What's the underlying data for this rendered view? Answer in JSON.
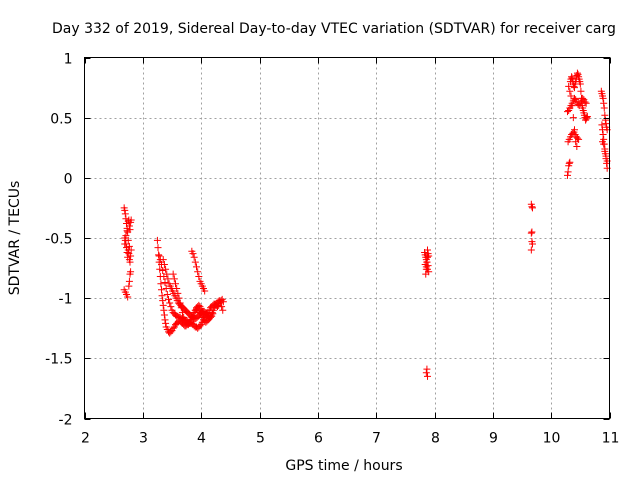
{
  "chart_data": {
    "type": "scatter",
    "title": "Day 332 of 2019, Sidereal Day-to-day VTEC variation (SDTVAR) for receiver carg",
    "xlabel": "GPS time / hours",
    "ylabel": "SDTVAR / TECUs",
    "xlim": [
      2,
      11
    ],
    "ylim": [
      -2,
      1
    ],
    "xticks": [
      2,
      3,
      4,
      5,
      6,
      7,
      8,
      9,
      10,
      11
    ],
    "yticks": [
      -2,
      -1.5,
      -1,
      -0.5,
      0,
      0.5,
      1
    ],
    "xtick_labels": [
      "2",
      "3",
      "4",
      "5",
      "6",
      "7",
      "8",
      "9",
      "10",
      "11"
    ],
    "ytick_labels": [
      "-2",
      "-1.5",
      "-1",
      "-0.5",
      "0",
      "0.5",
      "1"
    ],
    "grid": true,
    "marker": "+",
    "color": "#ff0000",
    "series": [
      {
        "name": "SDTVAR",
        "x": [
          2.68,
          2.69,
          2.7,
          2.71,
          2.72,
          2.73,
          2.74,
          2.75,
          2.76,
          2.77,
          2.78,
          2.79,
          2.8,
          2.69,
          2.7,
          2.71,
          2.72,
          2.73,
          2.74,
          2.75,
          2.76,
          2.77,
          2.78,
          2.79,
          2.8,
          2.68,
          2.7,
          2.72,
          2.74,
          2.76,
          2.77,
          2.78,
          2.79,
          2.69,
          2.71,
          2.73,
          2.75,
          2.77,
          3.25,
          3.26,
          3.27,
          3.28,
          3.29,
          3.3,
          3.31,
          3.32,
          3.33,
          3.34,
          3.35,
          3.36,
          3.37,
          3.38,
          3.39,
          3.4,
          3.42,
          3.44,
          3.46,
          3.48,
          3.5,
          3.52,
          3.54,
          3.56,
          3.58,
          3.6,
          3.62,
          3.64,
          3.66,
          3.68,
          3.7,
          3.72,
          3.74,
          3.76,
          3.78,
          3.8,
          3.82,
          3.84,
          3.86,
          3.88,
          3.9,
          3.92,
          3.94,
          3.96,
          3.98,
          4.0,
          4.02,
          4.04,
          4.06,
          4.08,
          4.1,
          4.12,
          4.14,
          4.16,
          4.18,
          4.2,
          3.28,
          3.3,
          3.32,
          3.34,
          3.36,
          3.38,
          3.4,
          3.42,
          3.44,
          3.46,
          3.48,
          3.5,
          3.52,
          3.54,
          3.56,
          3.58,
          3.6,
          3.62,
          3.64,
          3.66,
          3.68,
          3.7,
          3.72,
          3.74,
          3.76,
          3.78,
          3.8,
          3.82,
          3.84,
          3.86,
          3.88,
          3.9,
          3.92,
          3.94,
          3.96,
          3.98,
          4.0,
          4.02,
          4.04,
          4.06,
          4.08,
          4.1,
          3.35,
          3.37,
          3.39,
          3.41,
          3.43,
          3.45,
          3.47,
          3.49,
          3.51,
          3.53,
          3.55,
          3.57,
          3.59,
          3.61,
          3.63,
          3.65,
          3.67,
          3.69,
          3.71,
          3.73,
          3.75,
          3.77,
          3.79,
          3.81,
          3.83,
          3.85,
          3.87,
          3.89,
          3.91,
          3.93,
          3.95,
          3.97,
          3.99,
          4.01,
          4.03,
          4.05,
          4.07,
          4.09,
          4.11,
          4.13,
          4.15,
          4.17,
          4.19,
          4.21,
          4.23,
          4.25,
          4.27,
          4.29,
          4.31,
          4.33,
          4.35,
          4.37,
          3.52,
          3.54,
          3.56,
          3.58,
          3.6,
          3.62,
          3.64,
          3.66,
          3.68,
          3.7,
          3.72,
          3.74,
          3.76,
          3.78,
          3.8,
          3.82,
          3.84,
          3.86,
          3.88,
          3.9,
          3.92,
          3.94,
          3.96,
          3.98,
          4.0,
          4.02,
          4.04,
          4.06,
          4.08,
          4.1,
          4.12,
          4.14,
          4.16,
          4.18,
          4.2,
          4.22,
          4.24,
          4.26,
          4.28,
          4.3,
          4.32,
          4.34,
          4.36,
          4.38,
          3.84,
          3.86,
          3.88,
          3.9,
          3.92,
          3.94,
          3.96,
          3.98,
          4.0,
          4.02,
          4.04,
          4.06,
          7.83,
          7.84,
          7.85,
          7.86,
          7.87,
          7.88,
          7.89,
          7.9,
          7.84,
          7.86,
          7.88,
          7.9,
          7.85,
          7.87,
          7.89,
          7.86,
          7.88,
          7.87,
          7.86,
          7.88,
          9.66,
          9.67,
          9.68,
          9.67,
          9.66,
          9.67,
          9.68,
          9.66,
          10.28,
          10.29,
          10.3,
          10.31,
          10.32,
          10.33,
          10.34,
          10.35,
          10.36,
          10.37,
          10.38,
          10.39,
          10.4,
          10.41,
          10.42,
          10.43,
          10.44,
          10.45,
          10.46,
          10.47,
          10.48,
          10.49,
          10.5,
          10.51,
          10.52,
          10.53,
          10.54,
          10.55,
          10.56,
          10.57,
          10.58,
          10.59,
          10.6,
          10.61,
          10.62,
          10.28,
          10.3,
          10.32,
          10.34,
          10.36,
          10.38,
          10.4,
          10.42,
          10.44,
          10.46,
          10.48,
          10.5,
          10.52,
          10.54,
          10.56,
          10.58,
          10.6,
          10.29,
          10.31,
          10.33,
          10.35,
          10.37,
          10.39,
          10.41,
          10.43,
          10.45,
          10.47,
          10.3,
          10.32,
          10.34,
          10.36,
          10.38,
          10.4,
          10.42,
          10.44,
          10.86,
          10.87,
          10.88,
          10.89,
          10.9,
          10.91,
          10.92,
          10.93,
          10.94,
          10.95,
          10.96,
          10.87,
          10.88,
          10.89,
          10.9,
          10.91,
          10.92,
          10.93,
          10.94,
          10.95,
          10.96,
          10.88,
          10.9,
          10.92,
          10.94,
          10.96
        ],
        "y": [
          -0.25,
          -0.27,
          -0.3,
          -0.34,
          -0.38,
          -0.42,
          -0.45,
          -0.36,
          -0.35,
          -0.4,
          -0.43,
          -0.37,
          -0.35,
          -0.5,
          -0.52,
          -0.55,
          -0.58,
          -0.62,
          -0.66,
          -0.6,
          -0.63,
          -0.68,
          -0.7,
          -0.65,
          -0.6,
          -0.93,
          -0.95,
          -0.97,
          -0.99,
          -0.9,
          -0.86,
          -0.8,
          -0.78,
          -0.55,
          -0.48,
          -0.44,
          -0.52,
          -0.57,
          -0.52,
          -0.58,
          -0.64,
          -0.7,
          -0.76,
          -0.82,
          -0.88,
          -0.93,
          -0.98,
          -1.02,
          -1.06,
          -1.1,
          -1.14,
          -1.18,
          -1.21,
          -1.24,
          -1.26,
          -1.28,
          -1.29,
          -1.28,
          -1.27,
          -1.25,
          -1.24,
          -1.22,
          -1.21,
          -1.2,
          -1.19,
          -1.19,
          -1.2,
          -1.21,
          -1.22,
          -1.23,
          -1.23,
          -1.22,
          -1.21,
          -1.2,
          -1.18,
          -1.16,
          -1.14,
          -1.12,
          -1.1,
          -1.09,
          -1.09,
          -1.1,
          -1.12,
          -1.14,
          -1.16,
          -1.18,
          -1.19,
          -1.2,
          -1.19,
          -1.18,
          -1.17,
          -1.16,
          -1.15,
          -1.13,
          -0.65,
          -0.68,
          -0.72,
          -0.77,
          -0.82,
          -0.87,
          -0.92,
          -0.97,
          -1.01,
          -1.04,
          -1.07,
          -1.1,
          -1.12,
          -1.13,
          -1.14,
          -1.15,
          -1.15,
          -1.16,
          -1.16,
          -1.17,
          -1.17,
          -1.18,
          -1.18,
          -1.19,
          -1.19,
          -1.2,
          -1.2,
          -1.21,
          -1.21,
          -1.22,
          -1.23,
          -1.24,
          -1.24,
          -1.25,
          -1.24,
          -1.23,
          -1.22,
          -1.2,
          -1.18,
          -1.16,
          -1.14,
          -1.12,
          -0.68,
          -0.72,
          -0.76,
          -0.8,
          -0.84,
          -0.88,
          -0.9,
          -0.92,
          -0.94,
          -0.96,
          -0.98,
          -1.0,
          -1.02,
          -1.04,
          -1.05,
          -1.06,
          -1.07,
          -1.08,
          -1.09,
          -1.1,
          -1.11,
          -1.12,
          -1.13,
          -1.14,
          -1.15,
          -1.16,
          -1.17,
          -1.17,
          -1.17,
          -1.16,
          -1.15,
          -1.14,
          -1.13,
          -1.12,
          -1.11,
          -1.11,
          -1.12,
          -1.13,
          -1.14,
          -1.15,
          -1.15,
          -1.14,
          -1.12,
          -1.1,
          -1.08,
          -1.06,
          -1.04,
          -1.03,
          -1.02,
          -1.04,
          -1.07,
          -1.1,
          -0.8,
          -0.84,
          -0.88,
          -0.92,
          -0.96,
          -1.0,
          -1.04,
          -1.08,
          -1.12,
          -1.16,
          -1.18,
          -1.2,
          -1.21,
          -1.22,
          -1.21,
          -1.2,
          -1.18,
          -1.15,
          -1.12,
          -1.1,
          -1.08,
          -1.07,
          -1.06,
          -1.07,
          -1.09,
          -1.11,
          -1.13,
          -1.14,
          -1.15,
          -1.14,
          -1.12,
          -1.1,
          -1.08,
          -1.07,
          -1.06,
          -1.05,
          -1.05,
          -1.06,
          -1.07,
          -1.06,
          -1.04,
          -1.02,
          -1.01,
          -1.03,
          -0.61,
          -0.63,
          -0.66,
          -0.7,
          -0.74,
          -0.78,
          -0.82,
          -0.86,
          -0.88,
          -0.9,
          -0.92,
          -0.94,
          -0.62,
          -0.64,
          -0.66,
          -0.68,
          -0.7,
          -0.6,
          -0.63,
          -0.65,
          -0.72,
          -0.74,
          -0.76,
          -0.78,
          -0.8,
          -0.7,
          -0.73,
          -0.76,
          -0.66,
          -1.59,
          -1.62,
          -1.65,
          -0.22,
          -0.24,
          -0.25,
          -0.45,
          -0.46,
          -0.53,
          -0.55,
          -0.6,
          0.02,
          0.05,
          0.1,
          0.12,
          0.13,
          0.8,
          0.82,
          0.84,
          0.83,
          0.8,
          0.78,
          0.76,
          0.75,
          0.78,
          0.8,
          0.82,
          0.85,
          0.87,
          0.86,
          0.84,
          0.82,
          0.8,
          0.78,
          0.72,
          0.66,
          0.6,
          0.58,
          0.56,
          0.54,
          0.52,
          0.5,
          0.48,
          0.49,
          0.5,
          0.51,
          0.55,
          0.56,
          0.58,
          0.6,
          0.62,
          0.64,
          0.66,
          0.65,
          0.63,
          0.61,
          0.6,
          0.62,
          0.64,
          0.66,
          0.65,
          0.63,
          0.62,
          0.3,
          0.32,
          0.34,
          0.36,
          0.37,
          0.38,
          0.36,
          0.34,
          0.33,
          0.32,
          0.76,
          0.72,
          0.68,
          0.6,
          0.5,
          0.4,
          0.3,
          0.26,
          0.72,
          0.7,
          0.68,
          0.66,
          0.62,
          0.58,
          0.52,
          0.48,
          0.45,
          0.42,
          0.4,
          0.44,
          0.4,
          0.36,
          0.32,
          0.28,
          0.24,
          0.2,
          0.16,
          0.12,
          0.08,
          0.3,
          0.28,
          0.22,
          0.18,
          0.14
        ]
      }
    ]
  }
}
